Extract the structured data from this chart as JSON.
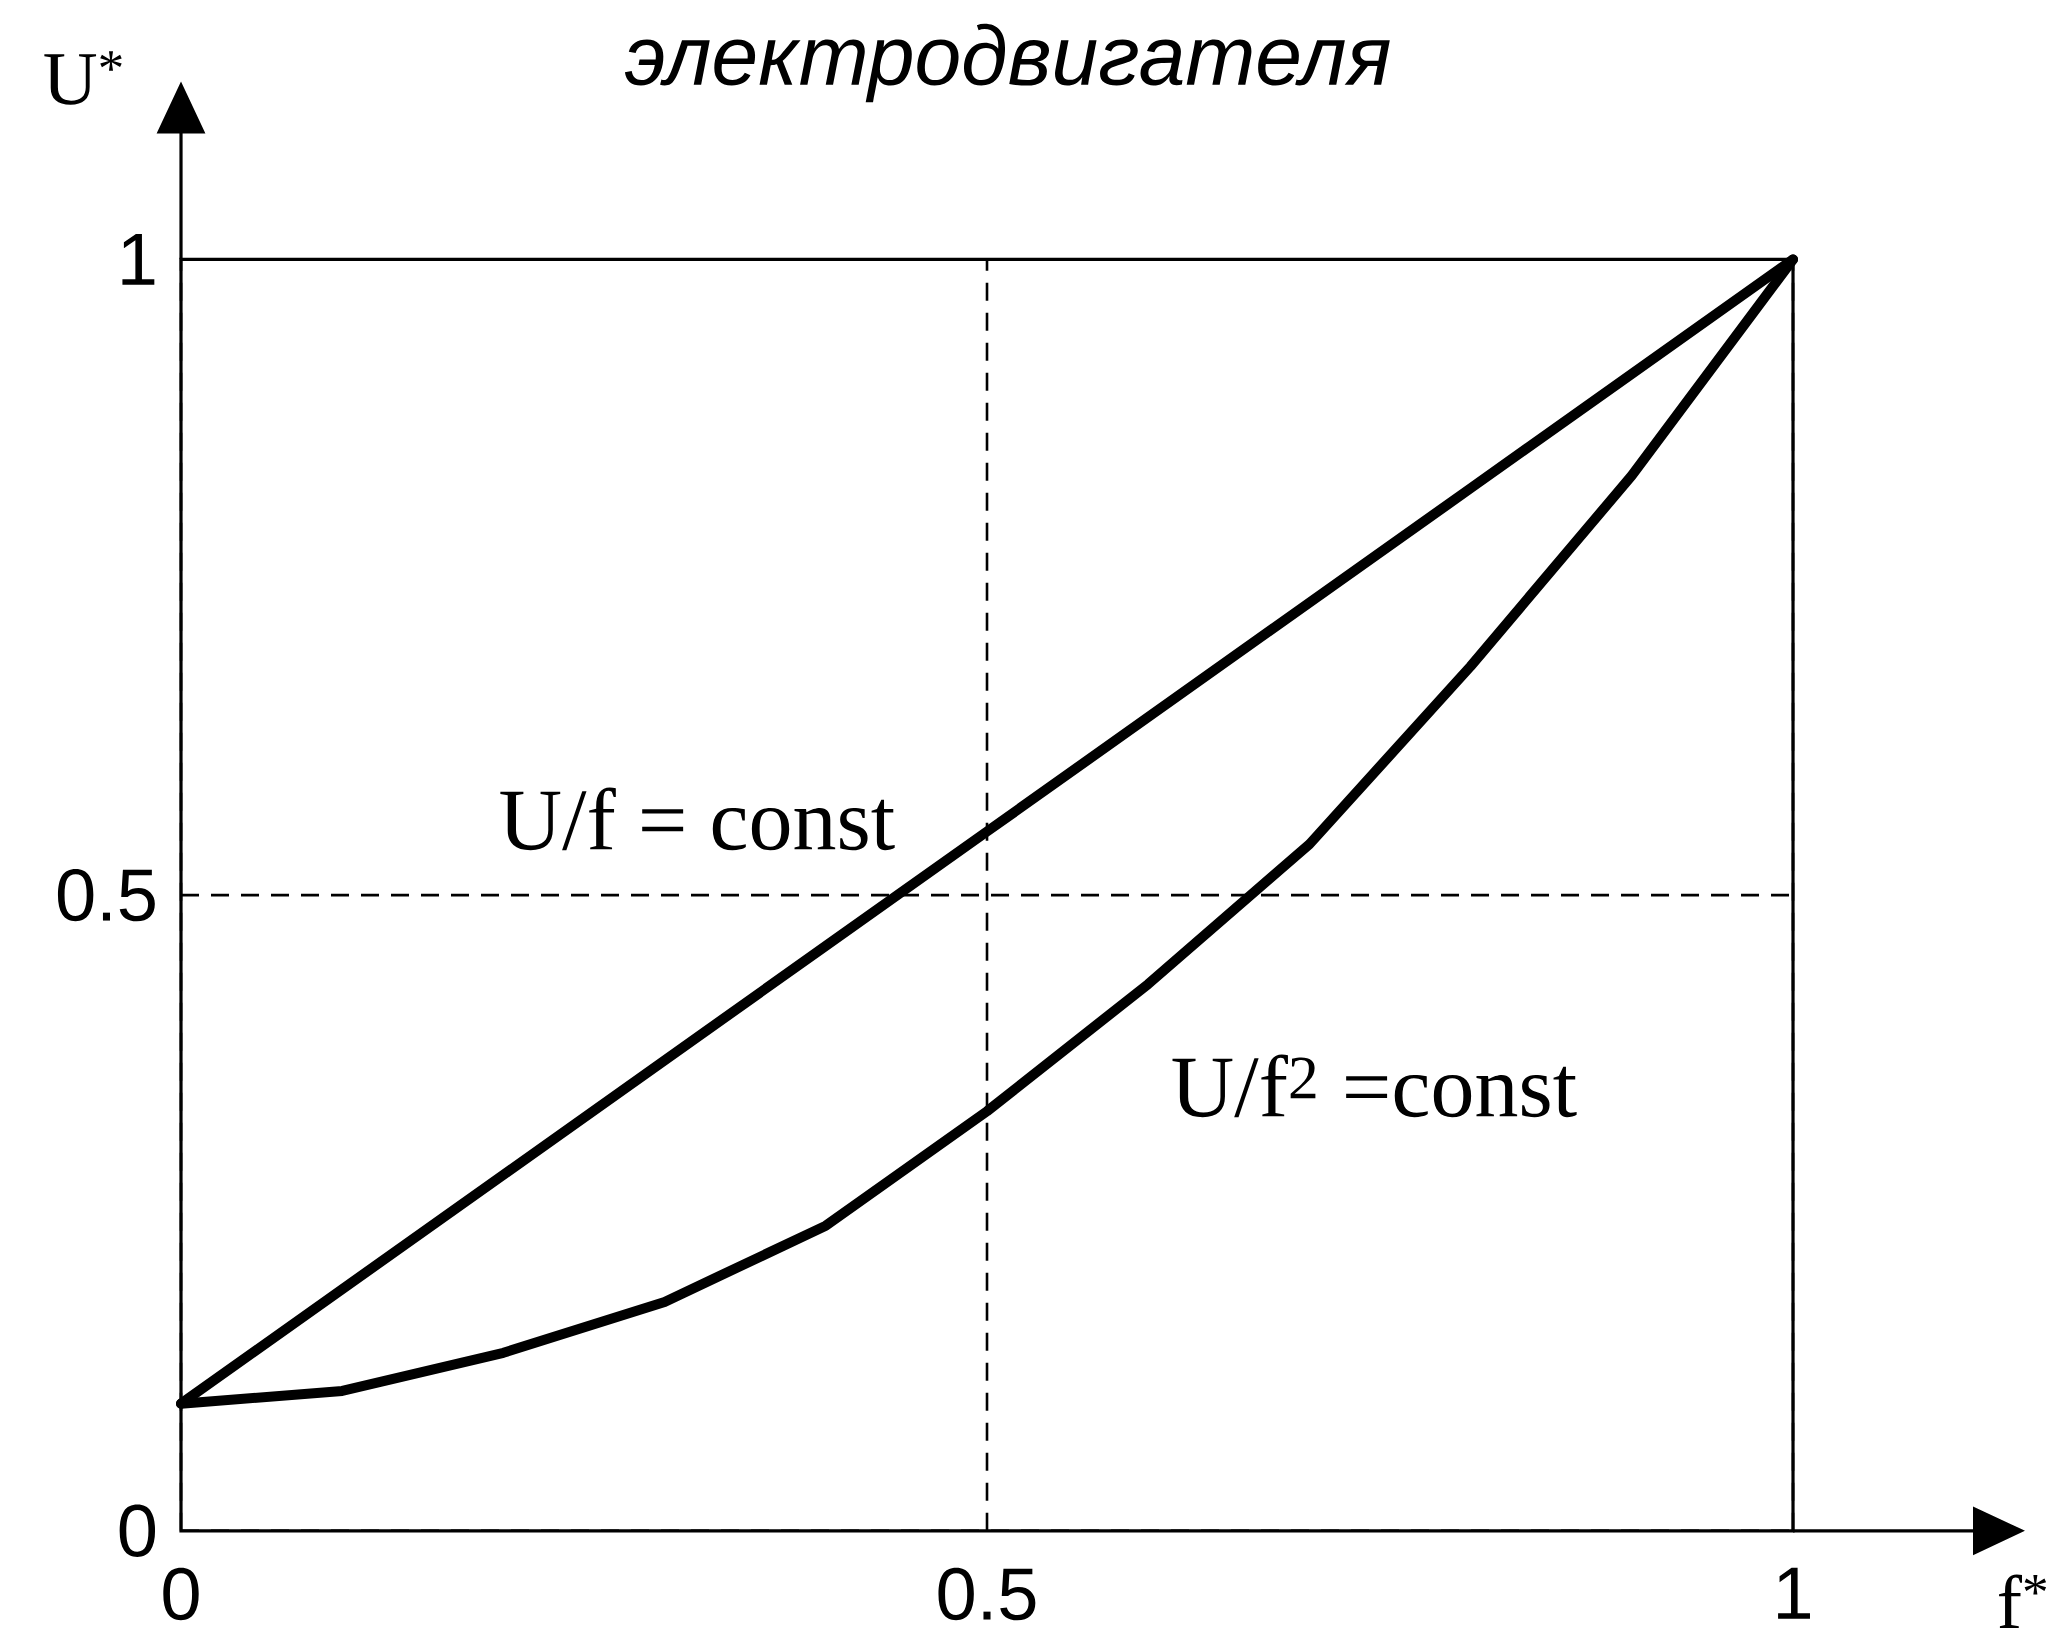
{
  "chart_data": {
    "type": "line",
    "title": "электродвигателя",
    "xlabel": "f$^{*}$",
    "ylabel": "U$^{*}$",
    "x": [
      0,
      0.1,
      0.2,
      0.3,
      0.4,
      0.5,
      0.6,
      0.7,
      0.8,
      0.9,
      1
    ],
    "series": [
      {
        "name": "U/f = const",
        "color": "#000000",
        "values": [
          0.1,
          0.19,
          0.28,
          0.37,
          0.46,
          0.55,
          0.64,
          0.73,
          0.82,
          0.91,
          1
        ]
      },
      {
        "name": "U/f$^{2}$ =const",
        "color": "#000000",
        "values": [
          0.1,
          0.11,
          0.14,
          0.18,
          0.24,
          0.33,
          0.43,
          0.54,
          0.68,
          0.83,
          1
        ]
      }
    ],
    "xlim": [
      0,
      1
    ],
    "ylim": [
      0,
      1
    ],
    "xticks": [
      0,
      0.5,
      1
    ],
    "yticks": [
      0,
      0.5,
      1
    ],
    "grid": true
  }
}
